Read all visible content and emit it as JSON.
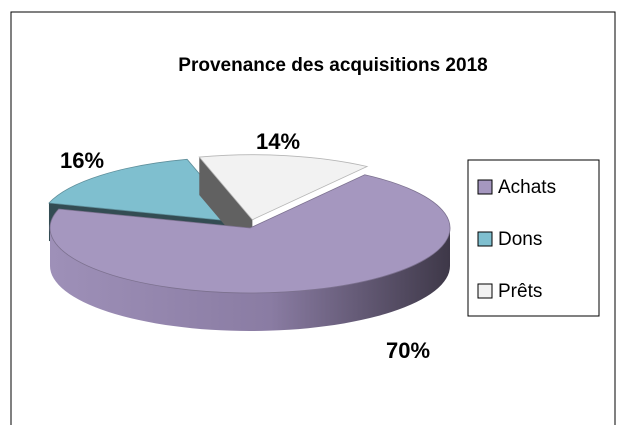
{
  "chart_data": {
    "type": "pie",
    "title": "Provenance des acquisitions 2018",
    "categories": [
      "Achats",
      "Dons",
      "Prêts"
    ],
    "values": [
      70,
      16,
      14
    ],
    "value_labels": [
      "70%",
      "16%",
      "14%"
    ],
    "colors": [
      "#a597bf",
      "#7fbfcf",
      "#f2f2f2"
    ],
    "legend": "right"
  }
}
